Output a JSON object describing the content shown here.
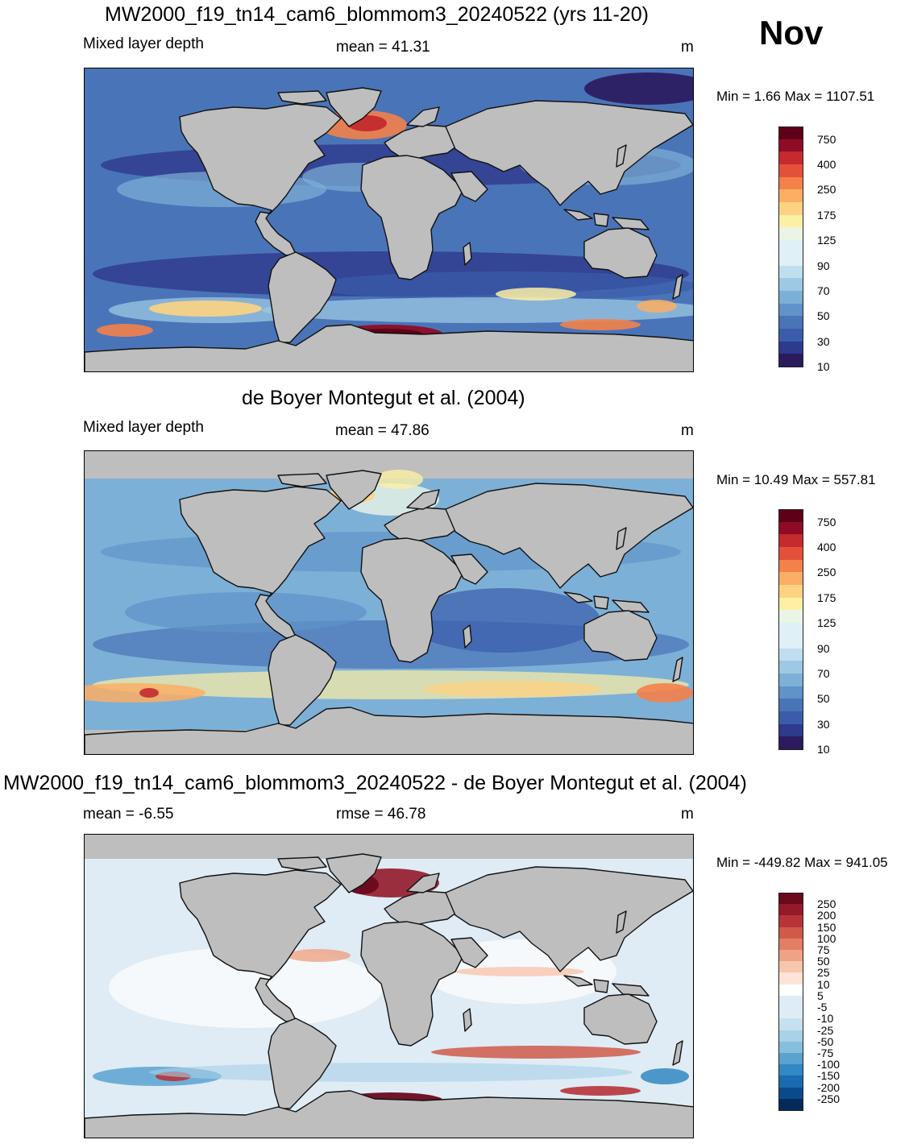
{
  "month": "Nov",
  "units": "m",
  "variable": "Mixed layer depth",
  "colors": {
    "land": "#bebebe",
    "coast": "#111111",
    "mld_palette": [
      "#2b1a5e",
      "#2e3a8c",
      "#3b5cab",
      "#4a74b8",
      "#5f93c9",
      "#7db0d7",
      "#9ec8e3",
      "#bfdff0",
      "#dff0f7",
      "#eaf5e6",
      "#fdf0a4",
      "#fdd383",
      "#fcae64",
      "#f4814a",
      "#e4513a",
      "#c42a2e",
      "#8e0c25",
      "#5e0017"
    ],
    "diff_palette": [
      "#052a5a",
      "#0a4a8c",
      "#1a6bb0",
      "#3288c2",
      "#5aa3d0",
      "#86bfdd",
      "#a9d1e7",
      "#c6e0ef",
      "#dfecf5",
      "#ffffff",
      "#fde4d6",
      "#f7c6ae",
      "#efa285",
      "#e27e64",
      "#d05a4a",
      "#b63438",
      "#941a2a",
      "#6a0a1c"
    ]
  },
  "panels": [
    {
      "id": "model",
      "title": "MW2000_f19_tn14_cam6_blommom3_20240522 (yrs 11-20)",
      "left_label": "Mixed layer depth",
      "mean_label": "mean =  41.31",
      "unit_label": "m",
      "minmax": "Min =   1.66 Max = 1107.51",
      "colorbar": [
        "750",
        "400",
        "250",
        "175",
        "125",
        "90",
        "70",
        "50",
        "30",
        "10"
      ]
    },
    {
      "id": "obs",
      "title": "de Boyer Montegut et al. (2004)",
      "left_label": "Mixed layer depth",
      "mean_label": "mean =  47.86",
      "unit_label": "m",
      "minmax": "Min =  10.49 Max = 557.81",
      "colorbar": [
        "750",
        "400",
        "250",
        "175",
        "125",
        "90",
        "70",
        "50",
        "30",
        "10"
      ]
    },
    {
      "id": "diff",
      "title": "MW2000_f19_tn14_cam6_blommom3_20240522 - de Boyer Montegut et al. (2004)",
      "left_label": "mean =  -6.55",
      "mean_label": "rmse =  46.78",
      "unit_label": "m",
      "minmax": "Min = -449.82 Max = 941.05",
      "colorbar": [
        "250",
        "200",
        "150",
        "100",
        "75",
        "50",
        "25",
        "10",
        "5",
        "-5",
        "-10",
        "-25",
        "-50",
        "-75",
        "-100",
        "-150",
        "-200",
        "-250"
      ]
    }
  ]
}
